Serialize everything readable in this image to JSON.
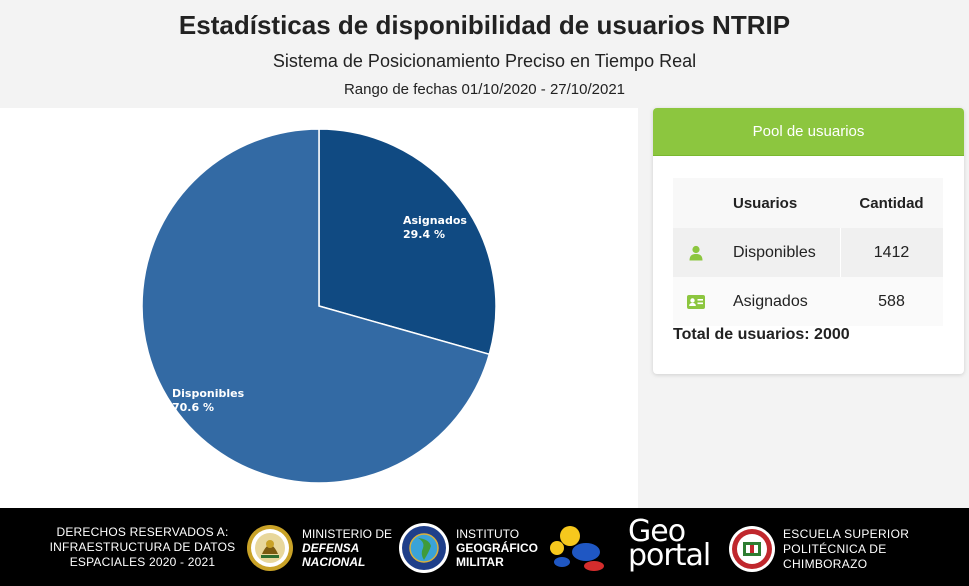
{
  "header": {
    "title": "Estadísticas de disponibilidad de usuarios NTRIP",
    "subtitle": "Sistema de Posicionamiento Preciso en Tiempo Real",
    "date_range": "Rango de fechas 01/10/2020 - 27/10/2021"
  },
  "chart_data": {
    "type": "pie",
    "categories": [
      "Asignados",
      "Disponibles"
    ],
    "values": [
      29.4,
      70.6
    ],
    "labels": [
      "29.4 %",
      "70.6 %"
    ],
    "colors": [
      "#104a82",
      "#336aa4"
    ]
  },
  "pool": {
    "title": "Pool de usuarios",
    "col_users": "Usuarios",
    "col_qty": "Cantidad",
    "rows": [
      {
        "name": "Disponibles",
        "qty": "1412",
        "icon": "user-icon"
      },
      {
        "name": "Asignados",
        "qty": "588",
        "icon": "id-card-icon"
      }
    ],
    "total": "Total de usuarios: 2000",
    "accent": "#8cc63f"
  },
  "footer": {
    "rights_line1": "DERECHOS RESERVADOS A:",
    "rights_line2": "INFRAESTRUCTURA DE DATOS",
    "rights_line3": "ESPACIALES 2020 - 2021",
    "ministry_line1": "MINISTERIO DE",
    "ministry_line2": "DEFENSA",
    "ministry_line3": "NACIONAL",
    "igm_line1": "INSTITUTO",
    "igm_line2": "GEOGRÁFICO",
    "igm_line3": "MILITAR",
    "geoportal_a": "Geo",
    "geoportal_b": "portal",
    "espoch_line1": "ESCUELA SUPERIOR",
    "espoch_line2": "POLITÉCNICA DE",
    "espoch_line3": "CHIMBORAZO"
  }
}
